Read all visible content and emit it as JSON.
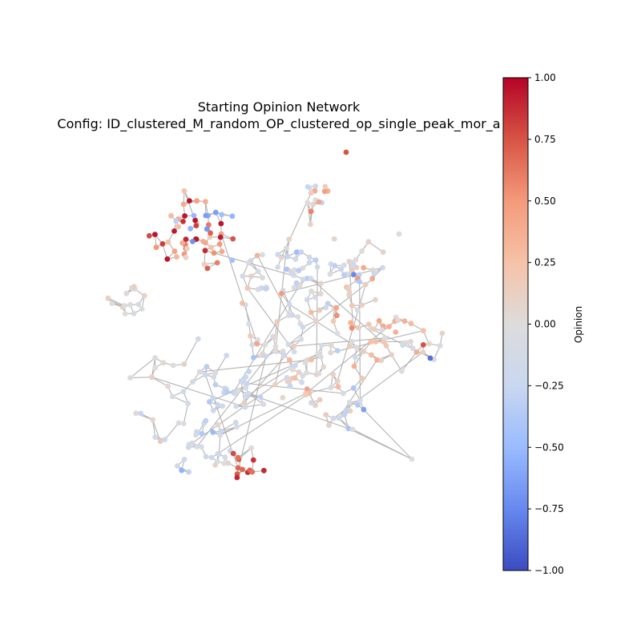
{
  "chart_data": {
    "type": "network",
    "title_line1": "Starting Opinion Network",
    "title_line2": "Config: ID_clustered_M_random_OP_clustered_op_single_peak_mor_a",
    "colorbar": {
      "label": "Opinion",
      "min": -1.0,
      "max": 1.0,
      "ticks": [
        "1.00",
        "0.75",
        "0.50",
        "0.25",
        "0.00",
        "−0.25",
        "−0.50",
        "−0.75",
        "−1.00"
      ],
      "colormap": "coolwarm",
      "stops": [
        "#3b4cc0",
        "#6788ee",
        "#9abbff",
        "#c9d7f0",
        "#dddcdc",
        "#f6c2a8",
        "#f49a7b",
        "#d75445",
        "#b40426"
      ]
    },
    "edge_color": "#b3b3b3"
  }
}
